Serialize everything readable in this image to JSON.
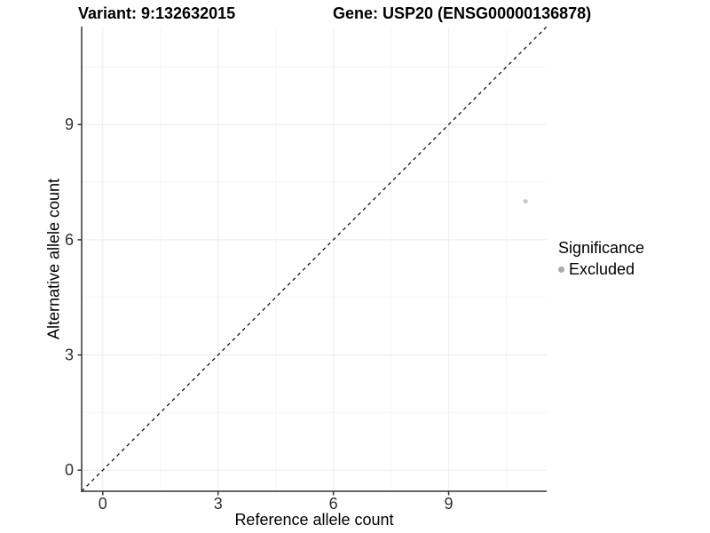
{
  "titles": {
    "left": "Variant: 9:132632015",
    "right": "Gene: USP20 (ENSG00000136878)"
  },
  "chart_data": {
    "type": "scatter",
    "xlabel": "Reference allele count",
    "ylabel": "Alternative allele count",
    "xlim": [
      -0.55,
      11.55
    ],
    "ylim": [
      -0.55,
      11.55
    ],
    "xticks": [
      0,
      3,
      6,
      9
    ],
    "yticks": [
      0,
      3,
      6,
      9
    ],
    "xticks_minor": [
      1.5,
      4.5,
      7.5,
      10.5
    ],
    "yticks_minor": [
      1.5,
      4.5,
      7.5,
      10.5
    ],
    "grid": true,
    "series": [
      {
        "name": "Excluded",
        "color": "#c6c6c6",
        "point_radius": 2.5,
        "points": [
          [
            11,
            7
          ]
        ]
      }
    ],
    "reference_line": {
      "style": "dashed",
      "color": "#000000",
      "from": [
        -0.55,
        -0.55
      ],
      "to": [
        11.55,
        11.55
      ]
    },
    "legend": {
      "title": "Significance",
      "position": "right",
      "items": [
        {
          "label": "Excluded",
          "color": "#aaaaaa"
        }
      ]
    }
  },
  "colors": {
    "background": "#ffffff",
    "axis_line": "#333333",
    "tick_mark": "#333333",
    "tick_label": "#303030",
    "grid_major": "#ececec",
    "grid_minor": "#f5f5f5"
  }
}
